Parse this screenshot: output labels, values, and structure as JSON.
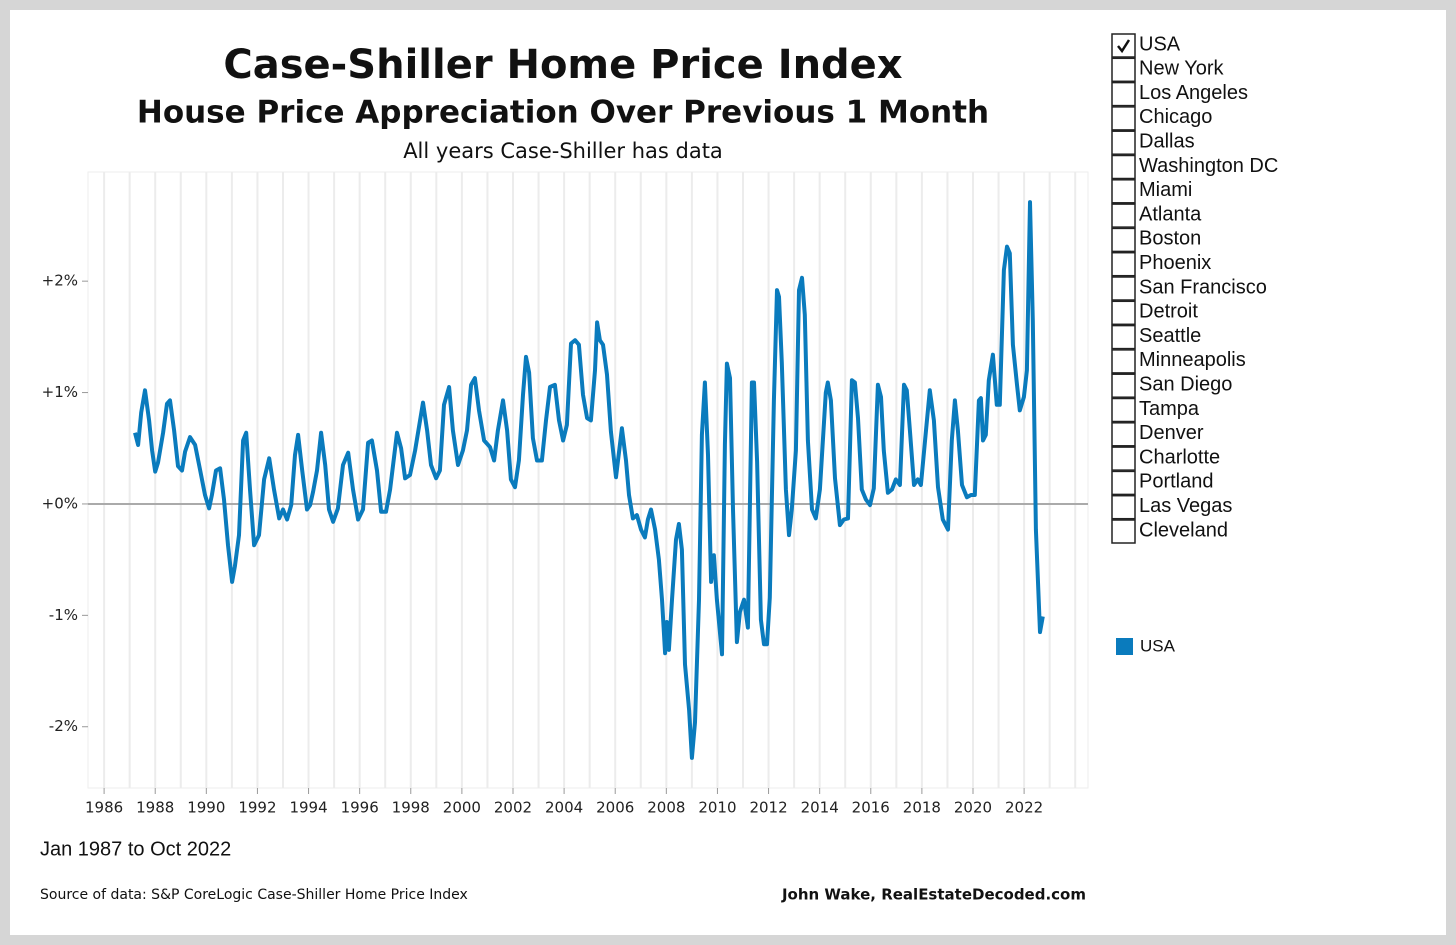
{
  "chart_data": {
    "type": "line",
    "title": "Case-Shiller Home Price Index",
    "subtitle": "House Price Appreciation Over Previous 1 Month",
    "note": "All years Case-Shiller has data",
    "date_range": "Jan 1987 to Oct 2022",
    "source": "Source of data: S&P CoreLogic Case-Shiller Home Price Index",
    "credit": "John Wake, RealEstateDecoded.com",
    "xlim": [
      1985.37,
      2024.5
    ],
    "xticks": [
      1986,
      1988,
      1990,
      1992,
      1994,
      1996,
      1998,
      2000,
      2002,
      2004,
      2006,
      2008,
      2010,
      2012,
      2014,
      2016,
      2018,
      2020,
      2022
    ],
    "x_minor_ticks": [
      1987,
      1989,
      1991,
      1993,
      1995,
      1997,
      1999,
      2001,
      2003,
      2005,
      2007,
      2009,
      2011,
      2013,
      2015,
      2017,
      2019,
      2021,
      2023,
      2024
    ],
    "ylim": [
      -2.55,
      2.98
    ],
    "yticks": [
      {
        "value": -2,
        "label": "-2%"
      },
      {
        "value": -1,
        "label": "-1%"
      },
      {
        "value": 0,
        "label": "+0%"
      },
      {
        "value": 1,
        "label": "+1%"
      },
      {
        "value": 2,
        "label": "+2%"
      }
    ],
    "zero_line": true,
    "x_grid": true,
    "series": [
      {
        "name": "USA",
        "color": "#0a7bbd",
        "x": [
          1987.21,
          1987.33,
          1987.45,
          1987.6,
          1987.76,
          1987.88,
          1988.0,
          1988.11,
          1988.31,
          1988.46,
          1988.58,
          1988.74,
          1988.89,
          1989.05,
          1989.17,
          1989.36,
          1989.56,
          1989.76,
          1989.95,
          1990.11,
          1990.22,
          1990.38,
          1990.54,
          1990.69,
          1990.85,
          1991.01,
          1991.12,
          1991.28,
          1991.44,
          1991.56,
          1991.71,
          1991.87,
          1992.06,
          1992.26,
          1992.46,
          1992.65,
          1992.85,
          1993.0,
          1993.16,
          1993.32,
          1993.47,
          1993.59,
          1993.75,
          1993.94,
          1994.06,
          1994.18,
          1994.33,
          1994.49,
          1994.65,
          1994.8,
          1994.96,
          1995.15,
          1995.35,
          1995.55,
          1995.74,
          1995.94,
          1996.13,
          1996.33,
          1996.48,
          1996.68,
          1996.84,
          1997.03,
          1997.19,
          1997.46,
          1997.62,
          1997.78,
          1997.97,
          1998.17,
          1998.48,
          1998.64,
          1998.79,
          1998.99,
          1999.14,
          1999.3,
          1999.5,
          1999.65,
          1999.85,
          2000.04,
          2000.2,
          2000.36,
          2000.51,
          2000.67,
          2000.87,
          2001.1,
          2001.26,
          2001.41,
          2001.61,
          2001.77,
          2001.92,
          2002.08,
          2002.23,
          2002.39,
          2002.51,
          2002.63,
          2002.78,
          2002.94,
          2003.13,
          2003.29,
          2003.45,
          2003.64,
          2003.8,
          2003.96,
          2004.11,
          2004.27,
          2004.43,
          2004.58,
          2004.74,
          2004.9,
          2005.05,
          2005.21,
          2005.29,
          2005.4,
          2005.52,
          2005.68,
          2005.83,
          2006.03,
          2006.11,
          2006.26,
          2006.42,
          2006.54,
          2006.69,
          2006.85,
          2007.01,
          2007.16,
          2007.28,
          2007.4,
          2007.56,
          2007.71,
          2007.83,
          2007.95,
          2008.02,
          2008.1,
          2008.22,
          2008.38,
          2008.49,
          2008.61,
          2008.73,
          2008.89,
          2009.0,
          2009.12,
          2009.28,
          2009.39,
          2009.51,
          2009.63,
          2009.75,
          2009.86,
          2009.98,
          2010.18,
          2010.29,
          2010.37,
          2010.49,
          2010.61,
          2010.76,
          2010.88,
          2011.04,
          2011.19,
          2011.35,
          2011.43,
          2011.55,
          2011.7,
          2011.82,
          2011.94,
          2012.05,
          2012.21,
          2012.33,
          2012.41,
          2012.52,
          2012.68,
          2012.8,
          2012.91,
          2013.07,
          2013.19,
          2013.31,
          2013.42,
          2013.54,
          2013.7,
          2013.85,
          2014.01,
          2014.24,
          2014.32,
          2014.44,
          2014.6,
          2014.79,
          2014.95,
          2015.11,
          2015.26,
          2015.38,
          2015.5,
          2015.65,
          2015.81,
          2015.97,
          2016.12,
          2016.28,
          2016.4,
          2016.51,
          2016.67,
          2016.83,
          2016.98,
          2017.14,
          2017.3,
          2017.41,
          2017.53,
          2017.69,
          2017.84,
          2017.96,
          2018.16,
          2018.31,
          2018.47,
          2018.63,
          2018.82,
          2019.02,
          2019.17,
          2019.29,
          2019.41,
          2019.57,
          2019.76,
          2019.92,
          2020.07,
          2020.23,
          2020.31,
          2020.39,
          2020.5,
          2020.62,
          2020.78,
          2020.93,
          2021.05,
          2021.21,
          2021.33,
          2021.44,
          2021.56,
          2021.72,
          2021.83,
          2021.99,
          2022.11,
          2022.23,
          2022.34,
          2022.46,
          2022.62,
          2022.73
        ],
        "values": [
          0.64,
          0.53,
          0.82,
          1.02,
          0.75,
          0.48,
          0.29,
          0.37,
          0.64,
          0.9,
          0.93,
          0.66,
          0.34,
          0.3,
          0.47,
          0.6,
          0.53,
          0.3,
          0.08,
          -0.04,
          0.08,
          0.3,
          0.32,
          0.04,
          -0.37,
          -0.7,
          -0.56,
          -0.28,
          0.57,
          0.64,
          0.13,
          -0.37,
          -0.28,
          0.22,
          0.41,
          0.13,
          -0.13,
          -0.05,
          -0.14,
          -0.01,
          0.44,
          0.62,
          0.3,
          -0.05,
          -0.01,
          0.11,
          0.3,
          0.64,
          0.35,
          -0.05,
          -0.16,
          -0.04,
          0.35,
          0.46,
          0.13,
          -0.14,
          -0.05,
          0.55,
          0.57,
          0.3,
          -0.07,
          -0.07,
          0.13,
          0.64,
          0.5,
          0.23,
          0.26,
          0.48,
          0.91,
          0.66,
          0.35,
          0.23,
          0.3,
          0.89,
          1.05,
          0.66,
          0.35,
          0.48,
          0.66,
          1.07,
          1.13,
          0.84,
          0.57,
          0.51,
          0.39,
          0.66,
          0.93,
          0.66,
          0.22,
          0.15,
          0.39,
          0.98,
          1.32,
          1.18,
          0.59,
          0.39,
          0.39,
          0.75,
          1.05,
          1.07,
          0.75,
          0.57,
          0.71,
          1.44,
          1.47,
          1.43,
          0.98,
          0.77,
          0.75,
          1.2,
          1.63,
          1.47,
          1.43,
          1.16,
          0.65,
          0.24,
          0.39,
          0.68,
          0.39,
          0.08,
          -0.13,
          -0.1,
          -0.23,
          -0.3,
          -0.14,
          -0.05,
          -0.23,
          -0.5,
          -0.86,
          -1.34,
          -1.06,
          -1.31,
          -0.86,
          -0.32,
          -0.18,
          -0.41,
          -1.44,
          -1.85,
          -2.28,
          -1.96,
          -0.86,
          0.62,
          1.09,
          0.44,
          -0.7,
          -0.46,
          -0.86,
          -1.35,
          0.53,
          1.26,
          1.13,
          -0.05,
          -1.24,
          -0.97,
          -0.86,
          -1.11,
          1.09,
          1.09,
          0.38,
          -1.04,
          -1.26,
          -1.26,
          -0.84,
          0.93,
          1.92,
          1.86,
          1.27,
          0.13,
          -0.28,
          -0.05,
          0.48,
          1.92,
          2.03,
          1.7,
          0.57,
          -0.05,
          -0.13,
          0.13,
          1.0,
          1.09,
          0.93,
          0.23,
          -0.19,
          -0.14,
          -0.13,
          1.11,
          1.09,
          0.77,
          0.13,
          0.04,
          -0.01,
          0.14,
          1.07,
          0.96,
          0.48,
          0.1,
          0.13,
          0.22,
          0.17,
          1.07,
          1.02,
          0.66,
          0.17,
          0.22,
          0.17,
          0.66,
          1.02,
          0.75,
          0.15,
          -0.14,
          -0.23,
          0.57,
          0.93,
          0.66,
          0.17,
          0.06,
          0.08,
          0.08,
          0.93,
          0.95,
          0.57,
          0.62,
          1.11,
          1.34,
          0.89,
          0.89,
          2.1,
          2.31,
          2.25,
          1.43,
          1.07,
          0.84,
          0.96,
          1.2,
          2.71,
          1.65,
          -0.23,
          -1.15,
          -1.01
        ]
      }
    ]
  },
  "filter": {
    "items": [
      {
        "label": "USA",
        "checked": true
      },
      {
        "label": "New York",
        "checked": false
      },
      {
        "label": "Los Angeles",
        "checked": false
      },
      {
        "label": "Chicago",
        "checked": false
      },
      {
        "label": "Dallas",
        "checked": false
      },
      {
        "label": "Washington DC",
        "checked": false
      },
      {
        "label": "Miami",
        "checked": false
      },
      {
        "label": "Atlanta",
        "checked": false
      },
      {
        "label": "Boston",
        "checked": false
      },
      {
        "label": "Phoenix",
        "checked": false
      },
      {
        "label": "San Francisco",
        "checked": false
      },
      {
        "label": "Detroit",
        "checked": false
      },
      {
        "label": "Seattle",
        "checked": false
      },
      {
        "label": "Minneapolis",
        "checked": false
      },
      {
        "label": "San Diego",
        "checked": false
      },
      {
        "label": "Tampa",
        "checked": false
      },
      {
        "label": "Denver",
        "checked": false
      },
      {
        "label": "Charlotte",
        "checked": false
      },
      {
        "label": "Portland",
        "checked": false
      },
      {
        "label": "Las Vegas",
        "checked": false
      },
      {
        "label": "Cleveland",
        "checked": false
      }
    ]
  }
}
